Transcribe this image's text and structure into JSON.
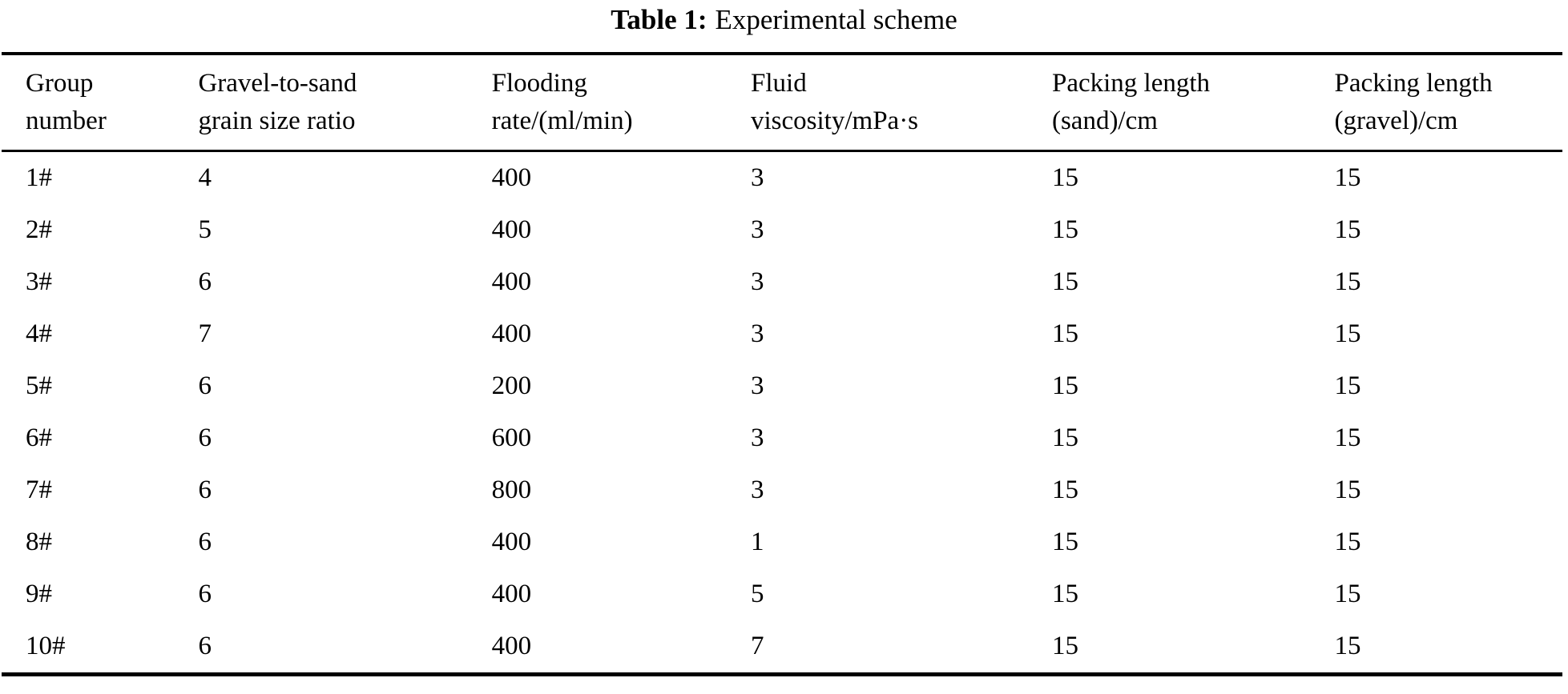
{
  "caption": {
    "label": "Table 1:",
    "text": "Experimental scheme"
  },
  "table": {
    "columns": [
      {
        "line1": "Group",
        "line2": "number"
      },
      {
        "line1": "Gravel-to-sand",
        "line2": "grain size ratio"
      },
      {
        "line1": "Flooding",
        "line2": "rate/(ml/min)"
      },
      {
        "line1": "Fluid",
        "line2": "viscosity/mPa·s"
      },
      {
        "line1": "Packing length",
        "line2": "(sand)/cm"
      },
      {
        "line1": "Packing length",
        "line2": "(gravel)/cm"
      }
    ],
    "rows": [
      [
        "1#",
        "4",
        "400",
        "3",
        "15",
        "15"
      ],
      [
        "2#",
        "5",
        "400",
        "3",
        "15",
        "15"
      ],
      [
        "3#",
        "6",
        "400",
        "3",
        "15",
        "15"
      ],
      [
        "4#",
        "7",
        "400",
        "3",
        "15",
        "15"
      ],
      [
        "5#",
        "6",
        "200",
        "3",
        "15",
        "15"
      ],
      [
        "6#",
        "6",
        "600",
        "3",
        "15",
        "15"
      ],
      [
        "7#",
        "6",
        "800",
        "3",
        "15",
        "15"
      ],
      [
        "8#",
        "6",
        "400",
        "1",
        "15",
        "15"
      ],
      [
        "9#",
        "6",
        "400",
        "5",
        "15",
        "15"
      ],
      [
        "10#",
        "6",
        "400",
        "7",
        "15",
        "15"
      ]
    ]
  },
  "chart_data": {
    "type": "table",
    "title": "Table 1: Experimental scheme",
    "columns": [
      "Group number",
      "Gravel-to-sand grain size ratio",
      "Flooding rate/(ml/min)",
      "Fluid viscosity/mPa·s",
      "Packing length (sand)/cm",
      "Packing length (gravel)/cm"
    ],
    "rows": [
      [
        "1#",
        4,
        400,
        3,
        15,
        15
      ],
      [
        "2#",
        5,
        400,
        3,
        15,
        15
      ],
      [
        "3#",
        6,
        400,
        3,
        15,
        15
      ],
      [
        "4#",
        7,
        400,
        3,
        15,
        15
      ],
      [
        "5#",
        6,
        200,
        3,
        15,
        15
      ],
      [
        "6#",
        6,
        600,
        3,
        15,
        15
      ],
      [
        "7#",
        6,
        800,
        3,
        15,
        15
      ],
      [
        "8#",
        6,
        400,
        1,
        15,
        15
      ],
      [
        "9#",
        6,
        400,
        5,
        15,
        15
      ],
      [
        "10#",
        6,
        400,
        7,
        15,
        15
      ]
    ]
  },
  "colors": {
    "text": "#000000",
    "background": "#ffffff",
    "rule": "#000000"
  }
}
